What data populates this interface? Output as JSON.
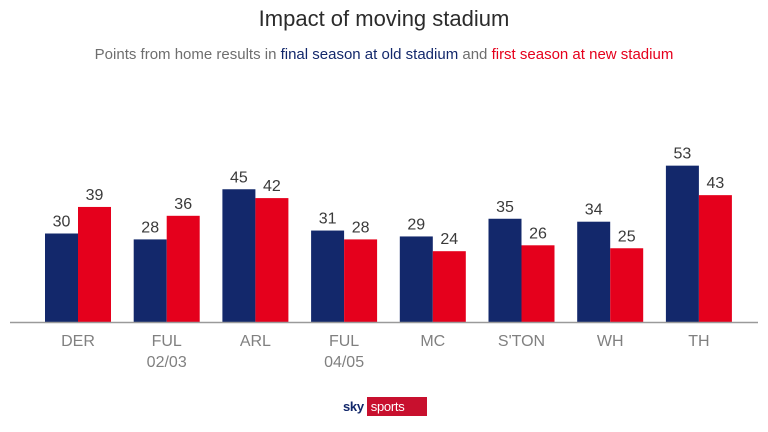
{
  "chart_data": {
    "type": "bar",
    "title": "Impact of moving stadium",
    "subtitle": {
      "prefix": "Points from home results in ",
      "series_old": "final season at old stadium",
      "middle": " and ",
      "series_new": "first season at new stadium"
    },
    "categories": [
      [
        "DER"
      ],
      [
        "FUL",
        "02/03"
      ],
      [
        "ARL"
      ],
      [
        "FUL",
        "04/05"
      ],
      [
        "MC"
      ],
      [
        "S'TON"
      ],
      [
        "WH"
      ],
      [
        "TH"
      ]
    ],
    "series": [
      {
        "name": "final season at old stadium",
        "color": "#13286b",
        "values": [
          30,
          28,
          45,
          31,
          29,
          35,
          34,
          53
        ]
      },
      {
        "name": "first season at new stadium",
        "color": "#e5001c",
        "values": [
          39,
          36,
          42,
          28,
          24,
          26,
          25,
          43
        ]
      }
    ],
    "ylim": [
      0,
      60
    ],
    "grid": false,
    "legend": "in subtitle"
  },
  "branding": {
    "logo_sky": "sky",
    "logo_sports": "sports"
  }
}
